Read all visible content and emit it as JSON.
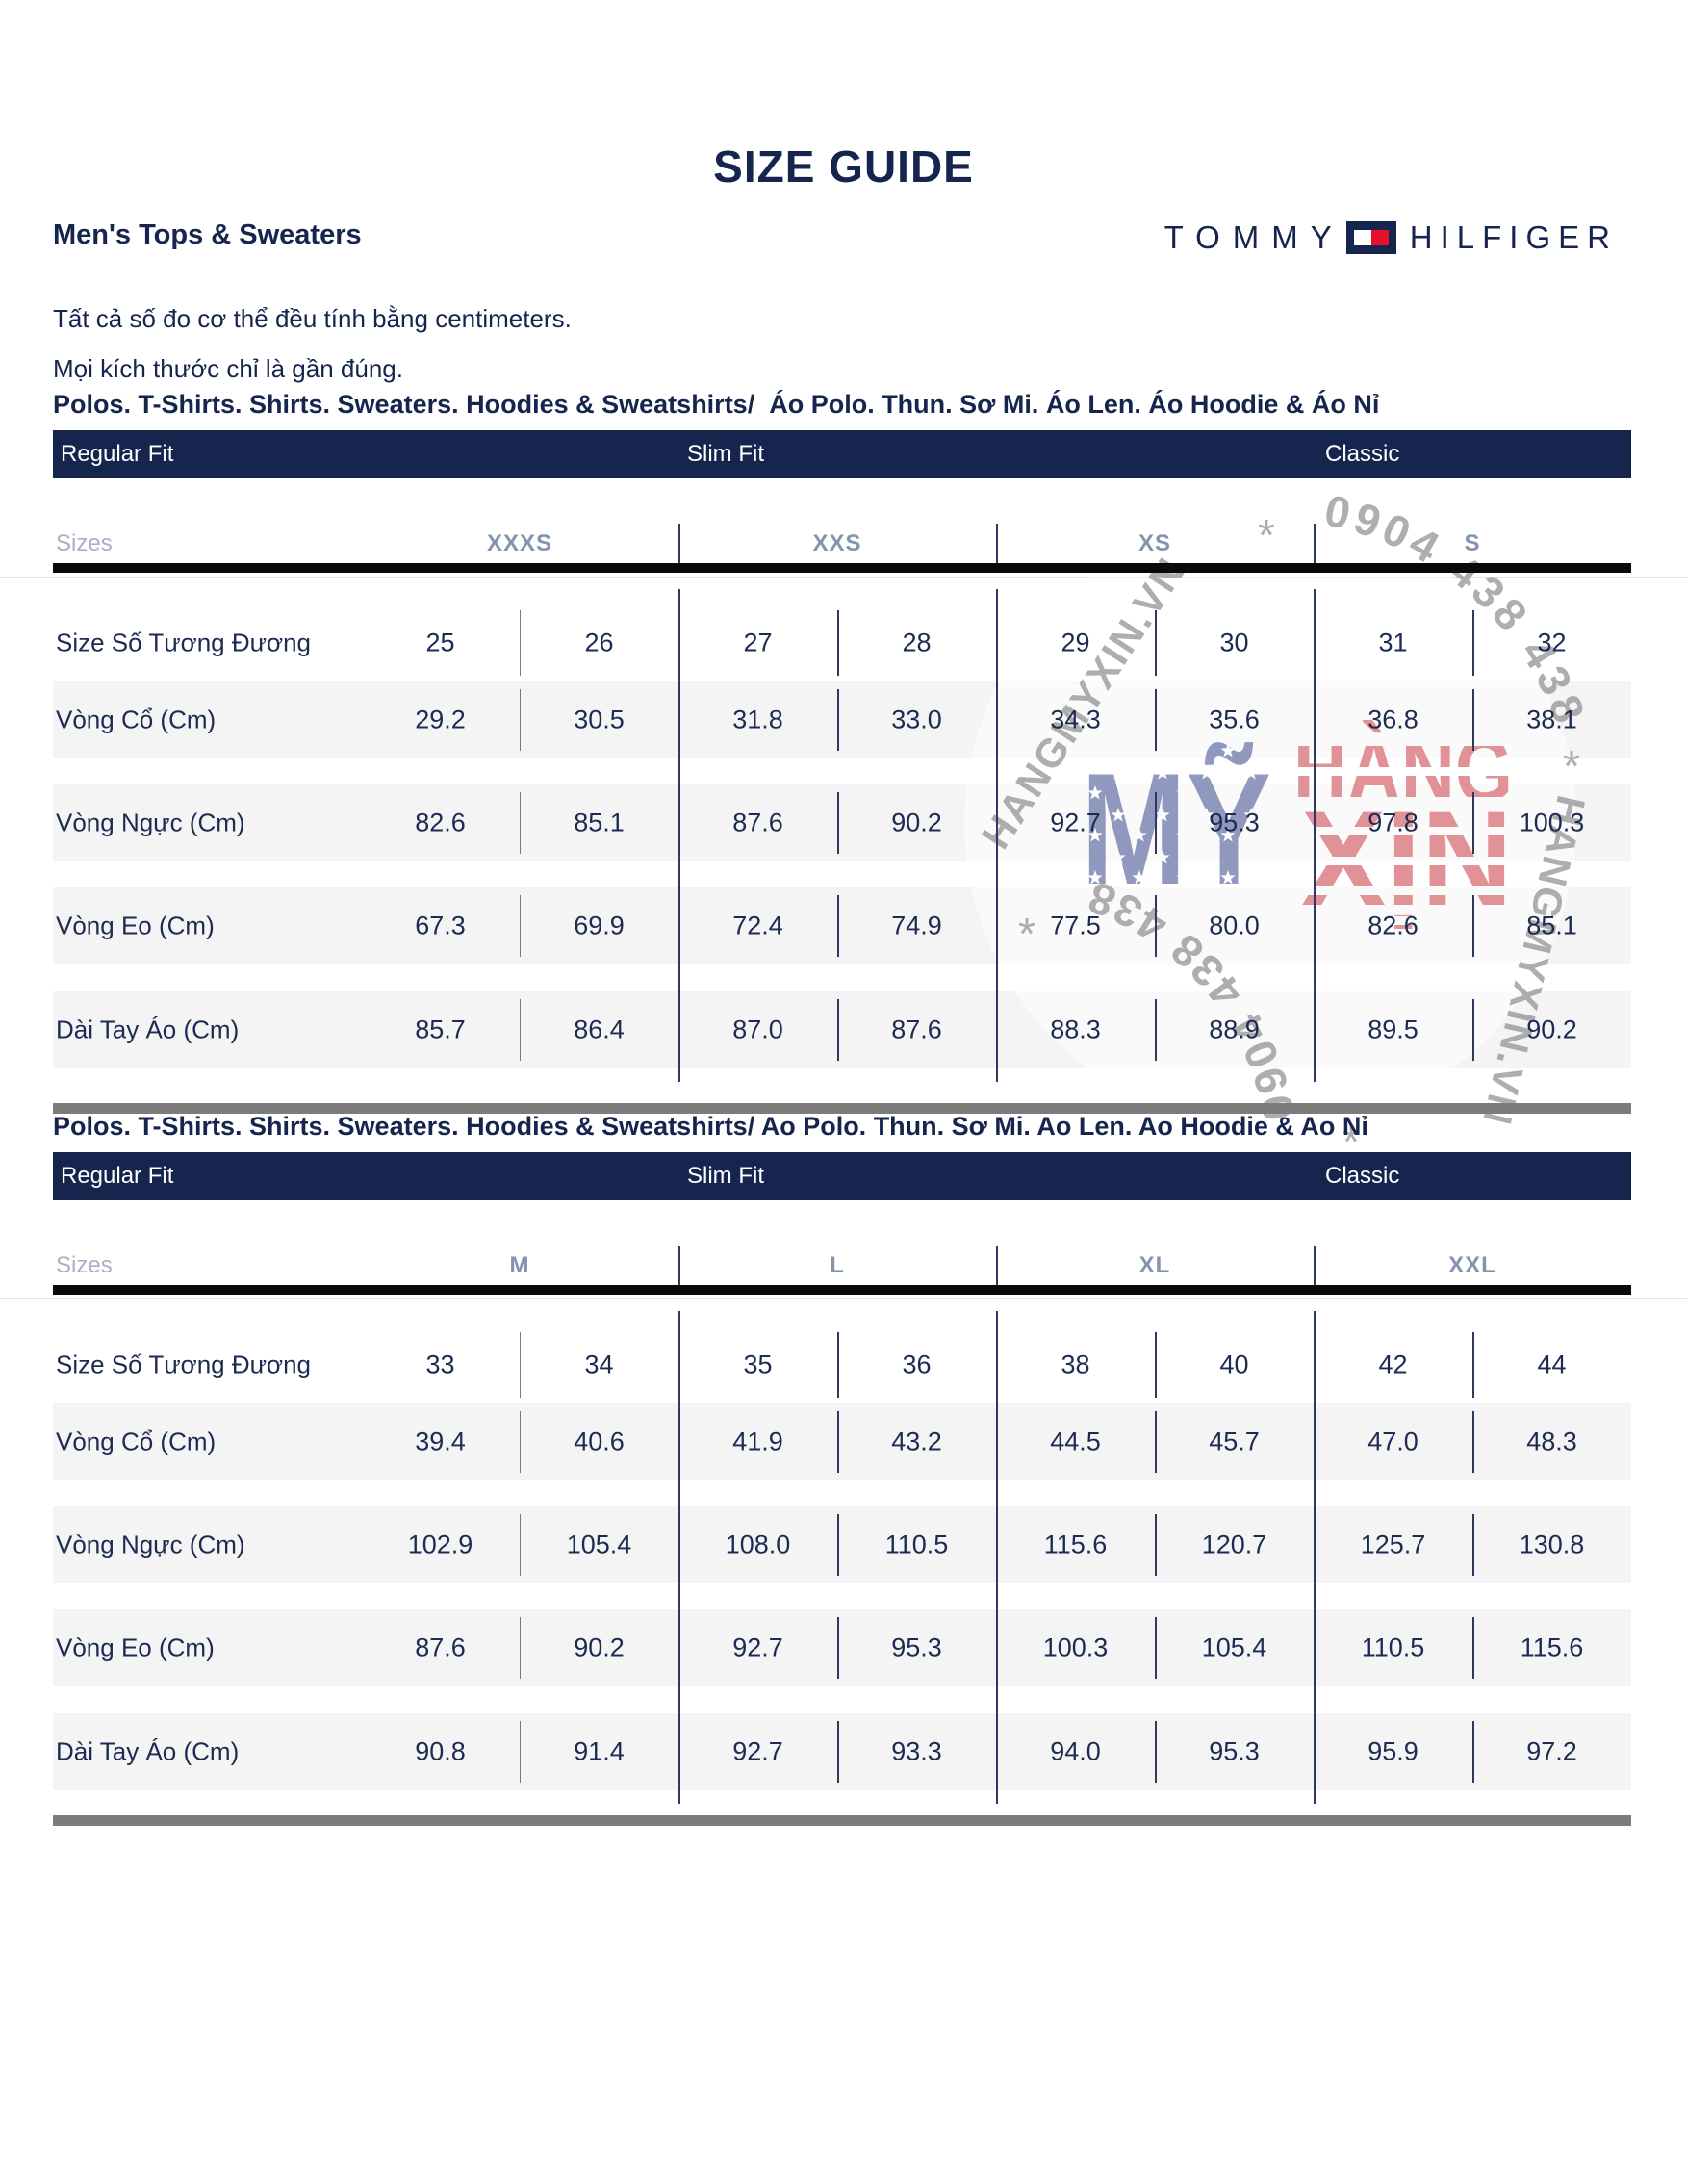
{
  "page": {
    "title": "SIZE GUIDE",
    "subtitle": "Men's Tops & Sweaters",
    "brand": {
      "word1": "TOMMY",
      "word2": "HILFIGER"
    },
    "notes": [
      "Tất cả số đo cơ thể đều tính bằng centimeters.",
      "Mọi kích thước chỉ là gần đúng."
    ]
  },
  "sections": [
    {
      "header": "Polos. T-Shirts. Shirts. Sweaters. Hoodies & Sweatshirts/  Áo Polo. Thun. Sơ Mi. Áo Len. Áo Hoodie & Áo Nỉ",
      "fits": [
        "Regular Fit",
        "Slim Fit",
        "Classic"
      ],
      "sizes_label": "Sizes",
      "size_groups": [
        "XXXS",
        "XXS",
        "XS",
        "S"
      ],
      "rows": [
        {
          "label": "Size Số Tương Đương",
          "values": [
            "25",
            "26",
            "27",
            "28",
            "29",
            "30",
            "31",
            "32"
          ]
        },
        {
          "label": "Vòng Cổ (Cm)",
          "values": [
            "29.2",
            "30.5",
            "31.8",
            "33.0",
            "34.3",
            "35.6",
            "36.8",
            "38.1"
          ]
        },
        {
          "label": "Vòng Ngực (Cm)",
          "values": [
            "82.6",
            "85.1",
            "87.6",
            "90.2",
            "92.7",
            "95.3",
            "97.8",
            "100.3"
          ]
        },
        {
          "label": "Vòng Eo (Cm)",
          "values": [
            "67.3",
            "69.9",
            "72.4",
            "74.9",
            "77.5",
            "80.0",
            "82.6",
            "85.1"
          ]
        },
        {
          "label": "Dài Tay Áo (Cm)",
          "values": [
            "85.7",
            "86.4",
            "87.0",
            "87.6",
            "88.3",
            "88.9",
            "89.5",
            "90.2"
          ]
        }
      ]
    },
    {
      "header": "Polos. T-Shirts. Shirts. Sweaters. Hoodies & Sweatshirts/ Ao Polo. Thun. Sơ Mi. Ao Len. Ao Hoodie & Ao Nỉ",
      "fits": [
        "Regular Fit",
        "Slim Fit",
        "Classic"
      ],
      "sizes_label": "Sizes",
      "size_groups": [
        "M",
        "L",
        "XL",
        "XXL"
      ],
      "rows": [
        {
          "label": "Size Số Tương Đương",
          "values": [
            "33",
            "34",
            "35",
            "36",
            "38",
            "40",
            "42",
            "44"
          ]
        },
        {
          "label": "Vòng Cổ (Cm)",
          "values": [
            "39.4",
            "40.6",
            "41.9",
            "43.2",
            "44.5",
            "45.7",
            "47.0",
            "48.3"
          ]
        },
        {
          "label": "Vòng Ngực (Cm)",
          "values": [
            "102.9",
            "105.4",
            "108.0",
            "110.5",
            "115.6",
            "120.7",
            "125.7",
            "130.8"
          ]
        },
        {
          "label": "Vòng Eo (Cm)",
          "values": [
            "87.6",
            "90.2",
            "92.7",
            "95.3",
            "100.3",
            "105.4",
            "110.5",
            "115.6"
          ]
        },
        {
          "label": "Dài Tay Áo (Cm)",
          "values": [
            "90.8",
            "91.4",
            "92.7",
            "93.3",
            "94.0",
            "95.3",
            "95.9",
            "97.2"
          ]
        }
      ]
    }
  ],
  "watermark": {
    "phone": "0904 438 438",
    "site": "HANGMYXIN.VN",
    "big_word": "MỸ",
    "stack_top": "HÀNG",
    "stack_bottom": "XỊN",
    "asterisk": "*"
  },
  "colors": {
    "navy": "#16254e",
    "flag_red": "#e8112d",
    "row_band": "#f4f4f5",
    "section_bar_gray": "#7c7c7c",
    "size_group_label": "#8294ae",
    "sizes_label": "#a9b1c0",
    "watermark_gray": "#9a9a9a",
    "watermark_blue": "#7e88b4",
    "watermark_red": "#dd8086"
  }
}
